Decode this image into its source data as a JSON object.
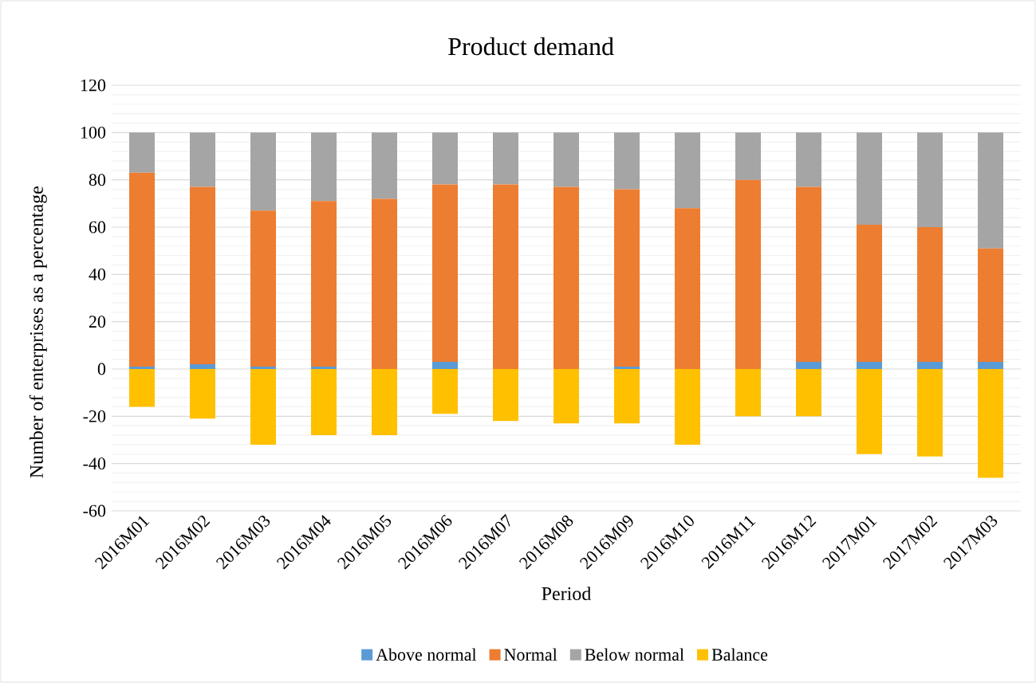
{
  "chart_data": {
    "type": "bar",
    "stacked": true,
    "title": "Product demand",
    "xlabel": "Period",
    "ylabel": "Number of enterprises as a percentage",
    "categories": [
      "2016M01",
      "2016M02",
      "2016M03",
      "2016M04",
      "2016M05",
      "2016M06",
      "2016M07",
      "2016M08",
      "2016M09",
      "2016M10",
      "2016M11",
      "2016M12",
      "2017M01",
      "2017M02",
      "2017M03"
    ],
    "series": [
      {
        "name": "Above normal",
        "color": "#5b9bd5",
        "values": [
          1,
          2,
          1,
          1,
          0,
          3,
          0,
          0,
          1,
          0,
          0,
          3,
          3,
          3,
          3
        ]
      },
      {
        "name": "Normal",
        "color": "#ed7d31",
        "values": [
          82,
          75,
          66,
          70,
          72,
          75,
          78,
          77,
          75,
          68,
          80,
          74,
          58,
          57,
          48
        ]
      },
      {
        "name": "Below normal",
        "color": "#a5a5a5",
        "values": [
          17,
          23,
          33,
          29,
          28,
          22,
          22,
          23,
          24,
          32,
          20,
          23,
          39,
          40,
          49
        ]
      },
      {
        "name": "Balance",
        "color": "#ffc000",
        "values": [
          -16,
          -21,
          -32,
          -28,
          -28,
          -19,
          -22,
          -23,
          -23,
          -32,
          -20,
          -20,
          -36,
          -37,
          -46
        ]
      }
    ],
    "ylim": [
      -60,
      120
    ],
    "yticks": [
      -60,
      -40,
      -20,
      0,
      20,
      40,
      60,
      80,
      100,
      120
    ],
    "grid": "y",
    "legend": "bottom"
  }
}
